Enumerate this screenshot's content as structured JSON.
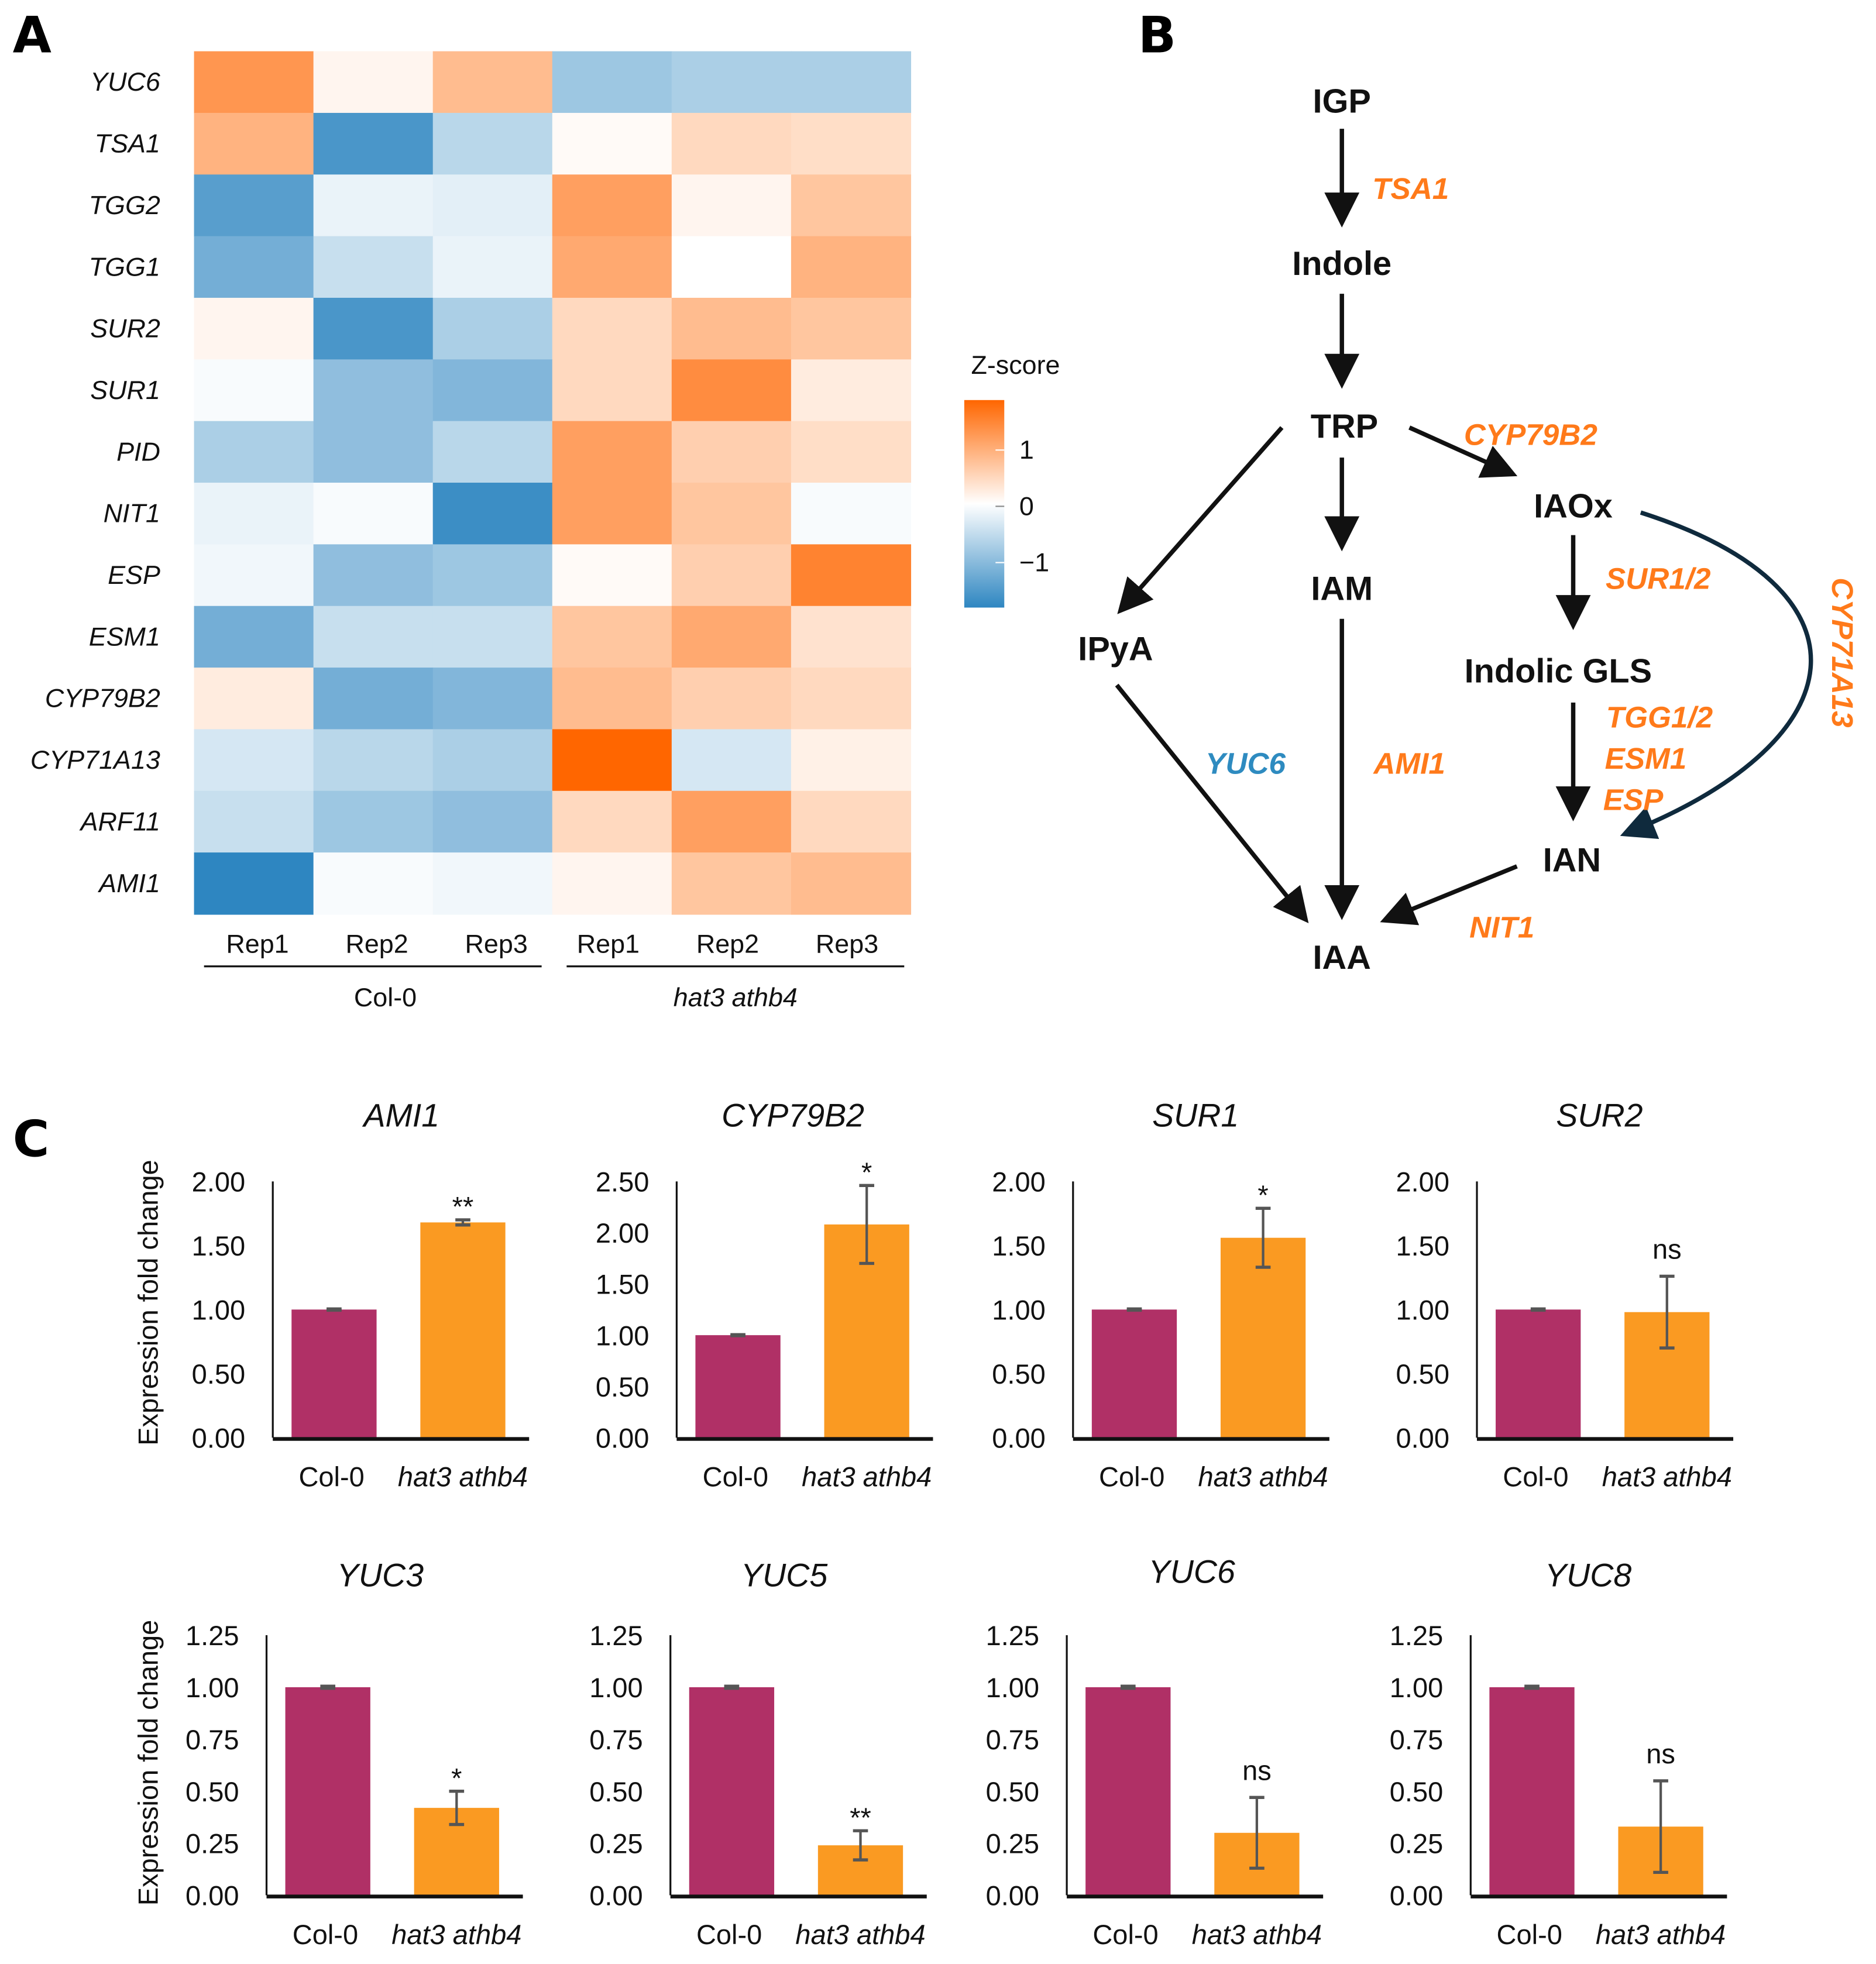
{
  "panels": {
    "a": "A",
    "b": "B",
    "c": "C"
  },
  "heatmap": {
    "type": "heatmap",
    "rows": [
      "YUC6",
      "TSA1",
      "TGG2",
      "TGG1",
      "SUR2",
      "SUR1",
      "PID",
      "NIT1",
      "ESP",
      "ESM1",
      "CYP79B2",
      "CYP71A13",
      "ARF11",
      "AMI1"
    ],
    "columns": [
      "Rep1",
      "Rep2",
      "Rep3",
      "Rep1",
      "Rep2",
      "Rep3"
    ],
    "groups": [
      "Col-0",
      "hat3 athb4"
    ],
    "values": [
      [
        1.1,
        0.1,
        0.7,
        -0.7,
        -0.6,
        -0.6
      ],
      [
        0.8,
        -1.3,
        -0.5,
        0.05,
        0.4,
        0.35
      ],
      [
        -1.2,
        -0.15,
        -0.2,
        1.0,
        0.1,
        0.6
      ],
      [
        -1.0,
        -0.4,
        -0.15,
        0.9,
        0.0,
        0.8
      ],
      [
        0.1,
        -1.3,
        -0.6,
        0.4,
        0.7,
        0.6
      ],
      [
        -0.05,
        -0.8,
        -0.9,
        0.4,
        1.2,
        0.2
      ],
      [
        -0.6,
        -0.8,
        -0.5,
        1.0,
        0.5,
        0.35
      ],
      [
        -0.15,
        -0.05,
        -1.4,
        1.0,
        0.6,
        -0.05
      ],
      [
        -0.1,
        -0.8,
        -0.7,
        0.05,
        0.5,
        1.3
      ],
      [
        -1.0,
        -0.4,
        -0.4,
        0.6,
        0.9,
        0.3
      ],
      [
        0.2,
        -1.0,
        -0.9,
        0.7,
        0.5,
        0.4
      ],
      [
        -0.3,
        -0.5,
        -0.6,
        1.6,
        -0.3,
        0.15
      ],
      [
        -0.4,
        -0.7,
        -0.8,
        0.4,
        1.0,
        0.4
      ],
      [
        -1.5,
        -0.05,
        -0.1,
        0.1,
        0.6,
        0.7
      ]
    ],
    "legend": {
      "title": "Z-score",
      "ticks": [
        "1",
        "0",
        "−1"
      ]
    },
    "colors": {
      "low": "#2e86c1",
      "mid": "#ffffff",
      "high": "#ff6600"
    }
  },
  "pathway": {
    "nodes": {
      "igp": "IGP",
      "indole": "Indole",
      "trp": "TRP",
      "iaox": "IAOx",
      "iam": "IAM",
      "ipya": "IPyA",
      "gls": "Indolic GLS",
      "ian": "IAN",
      "iaa": "IAA"
    },
    "enzymes": {
      "tsa1": "TSA1",
      "cyp79b2": "CYP79B2",
      "sur12": "SUR1/2",
      "yuc6": "YUC6",
      "ami1": "AMI1",
      "tgg12": "TGG1/2",
      "esm1": "ESM1",
      "esp": "ESP",
      "nit1": "NIT1",
      "cyp71a13": "CYP71A13"
    },
    "colors": {
      "enzyme": "#ff7a1a",
      "down": "#2e8bc0",
      "arrow": "#111111",
      "curve": "#0f2a3d"
    }
  },
  "chart_data": [
    {
      "type": "bar",
      "title": "AMI1",
      "categories": [
        "Col-0",
        "hat3 athb4"
      ],
      "values": [
        1.0,
        1.68
      ],
      "errors": [
        0.005,
        0.02
      ],
      "sig": "**",
      "ylabel": "Expression fold change",
      "ylim": [
        0,
        2.0
      ],
      "yticks": [
        "0.00",
        "0.50",
        "1.00",
        "1.50",
        "2.00"
      ]
    },
    {
      "type": "bar",
      "title": "CYP79B2",
      "categories": [
        "Col-0",
        "hat3 athb4"
      ],
      "values": [
        1.0,
        2.08
      ],
      "errors": [
        0.005,
        0.38
      ],
      "sig": "*",
      "ylim": [
        0,
        2.5
      ],
      "yticks": [
        "0.00",
        "0.50",
        "1.00",
        "1.50",
        "2.00",
        "2.50"
      ]
    },
    {
      "type": "bar",
      "title": "SUR1",
      "categories": [
        "Col-0",
        "hat3 athb4"
      ],
      "values": [
        1.0,
        1.56
      ],
      "errors": [
        0.005,
        0.23
      ],
      "sig": "*",
      "ylim": [
        0,
        2.0
      ],
      "yticks": [
        "0.00",
        "0.50",
        "1.00",
        "1.50",
        "2.00"
      ]
    },
    {
      "type": "bar",
      "title": "SUR2",
      "categories": [
        "Col-0",
        "hat3 athb4"
      ],
      "values": [
        1.0,
        0.98
      ],
      "errors": [
        0.005,
        0.28
      ],
      "sig": "ns",
      "ylim": [
        0,
        2.0
      ],
      "yticks": [
        "0.00",
        "0.50",
        "1.00",
        "1.50",
        "2.00"
      ]
    },
    {
      "type": "bar",
      "title": "YUC3",
      "categories": [
        "Col-0",
        "hat3 athb4"
      ],
      "values": [
        1.0,
        0.42
      ],
      "errors": [
        0.005,
        0.08
      ],
      "sig": "*",
      "ylabel": "Expression fold change",
      "ylim": [
        0,
        1.25
      ],
      "yticks": [
        "0.00",
        "0.25",
        "0.50",
        "0.75",
        "1.00",
        "1.25"
      ]
    },
    {
      "type": "bar",
      "title": "YUC5",
      "categories": [
        "Col-0",
        "hat3 athb4"
      ],
      "values": [
        1.0,
        0.24
      ],
      "errors": [
        0.005,
        0.07
      ],
      "sig": "**",
      "ylim": [
        0,
        1.25
      ],
      "yticks": [
        "0.00",
        "0.25",
        "0.50",
        "0.75",
        "1.00",
        "1.25"
      ]
    },
    {
      "type": "bar",
      "title": "YUC6",
      "categories": [
        "Col-0",
        "hat3 athb4"
      ],
      "values": [
        1.0,
        0.3
      ],
      "errors": [
        0.005,
        0.17
      ],
      "sig": "ns",
      "ylim": [
        0,
        1.25
      ],
      "yticks": [
        "0.00",
        "0.25",
        "0.50",
        "0.75",
        "1.00",
        "1.25"
      ]
    },
    {
      "type": "bar",
      "title": "YUC8",
      "categories": [
        "Col-0",
        "hat3 athb4"
      ],
      "values": [
        1.0,
        0.33
      ],
      "errors": [
        0.005,
        0.22
      ],
      "sig": "ns",
      "ylim": [
        0,
        1.25
      ],
      "yticks": [
        "0.00",
        "0.25",
        "0.50",
        "0.75",
        "1.00",
        "1.25"
      ]
    }
  ],
  "bar_colors": {
    "col": "#b03066",
    "mut": "#fa9a22",
    "err": "#555555"
  }
}
